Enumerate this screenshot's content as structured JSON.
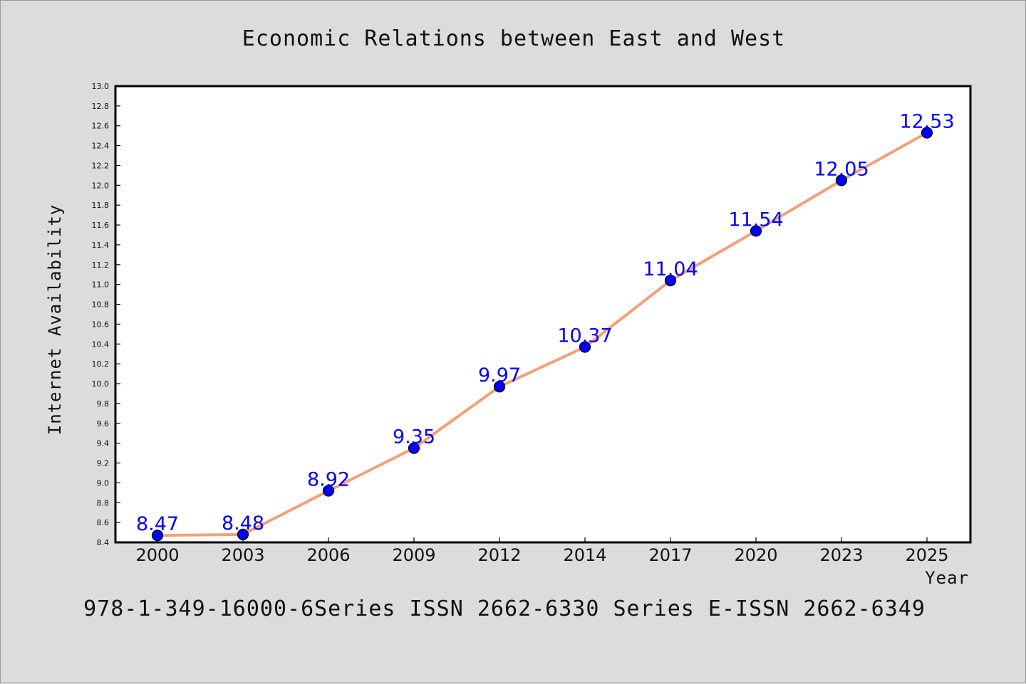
{
  "chart_data": {
    "type": "line",
    "title": "Economic Relations between East and West",
    "xlabel": "Year",
    "ylabel": "Internet Availability",
    "categories": [
      "2000",
      "2003",
      "2006",
      "2009",
      "2012",
      "2014",
      "2017",
      "2020",
      "2023",
      "2025"
    ],
    "series": [
      {
        "values": [
          8.47,
          8.48,
          8.92,
          9.35,
          9.97,
          10.37,
          11.04,
          11.54,
          12.05,
          12.53
        ],
        "line_color": "#f4a07a",
        "marker_color": "#0000ff",
        "label_color": "#0000ff"
      }
    ],
    "ylim": [
      8.4,
      13.0
    ],
    "yticks": [
      "8.4",
      "8.6",
      "8.8",
      "9.0",
      "9.2",
      "9.4",
      "9.6",
      "9.8",
      "10.0",
      "10.2",
      "10.4",
      "10.6",
      "10.8",
      "11.0",
      "11.2",
      "11.4",
      "11.6",
      "11.8",
      "12.0",
      "12.2",
      "12.4",
      "12.6",
      "12.8",
      "13.0"
    ],
    "grid": false,
    "legend": "none"
  },
  "footer": {
    "text": "978-1-349-16000-6Series ISSN 2662-6330 Series E-ISSN 2662-6349"
  },
  "colors": {
    "background": "#dcdcdc",
    "plot_background": "#ffffff",
    "axes": "#000000"
  }
}
